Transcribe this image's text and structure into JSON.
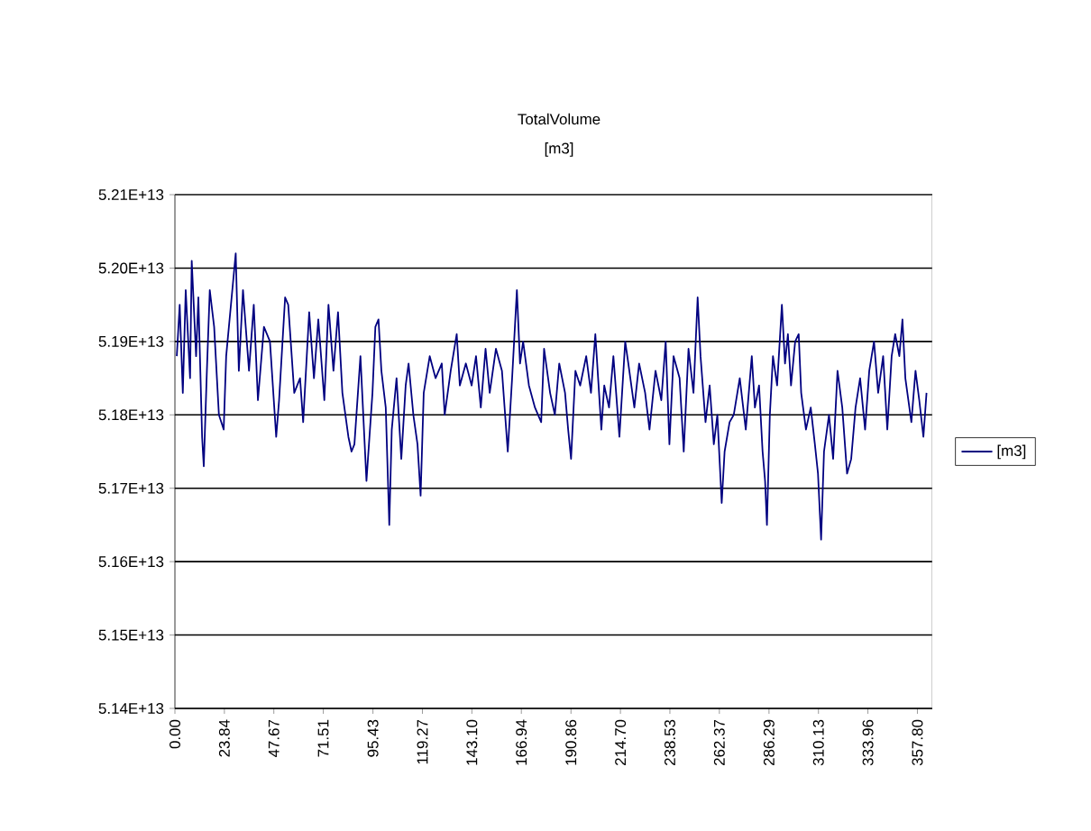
{
  "chart_data": {
    "type": "line",
    "title": "TotalVolume",
    "subtitle": "[m3]",
    "x": [
      0.9,
      2.3,
      3.8,
      5.2,
      7.3,
      8.1,
      10.2,
      11.3,
      13.1,
      13.9,
      15.4,
      16.8,
      18.9,
      21.2,
      23.5,
      24.7,
      27.0,
      29.3,
      30.8,
      32.8,
      35.7,
      38.0,
      40.0,
      42.9,
      45.8,
      48.8,
      50.2,
      53.1,
      54.6,
      57.5,
      60.3,
      61.8,
      64.7,
      67.0,
      69.1,
      72.0,
      74.0,
      76.4,
      78.6,
      80.7,
      83.6,
      85.1,
      86.5,
      89.4,
      92.3,
      95.2,
      96.6,
      98.1,
      99.5,
      101.6,
      103.3,
      104.5,
      106.8,
      109.1,
      111.2,
      112.6,
      114.9,
      116.9,
      118.4,
      119.9,
      122.8,
      125.6,
      128.6,
      130.0,
      132.9,
      135.8,
      137.3,
      140.2,
      143.0,
      145.1,
      147.4,
      149.7,
      151.7,
      154.7,
      157.6,
      160.4,
      162.5,
      164.8,
      166.3,
      167.8,
      170.6,
      173.5,
      176.5,
      177.9,
      180.8,
      183.1,
      185.2,
      188.0,
      189.5,
      190.9,
      193.0,
      195.3,
      198.2,
      200.5,
      202.6,
      205.5,
      206.9,
      209.2,
      211.3,
      214.2,
      217.0,
      218.5,
      221.4,
      223.7,
      226.6,
      228.7,
      231.6,
      234.4,
      236.5,
      238.3,
      240.3,
      243.2,
      245.2,
      247.5,
      249.9,
      251.9,
      253.3,
      255.7,
      257.7,
      259.7,
      261.4,
      263.5,
      264.9,
      267.3,
      269.3,
      272.2,
      275.1,
      278.0,
      279.5,
      281.5,
      283.2,
      284.4,
      285.3,
      286.7,
      288.2,
      290.2,
      292.5,
      294.0,
      295.4,
      296.9,
      298.9,
      300.6,
      301.8,
      304.1,
      306.4,
      308.4,
      309.9,
      311.4,
      312.8,
      315.2,
      317.2,
      319.3,
      321.6,
      323.9,
      325.9,
      328.0,
      330.2,
      332.6,
      334.6,
      336.9,
      338.9,
      341.3,
      343.3,
      345.4,
      347.1,
      349.1,
      350.6,
      352.0,
      354.9,
      356.9,
      358.7,
      360.7,
      362.2
    ],
    "series": [
      {
        "name": "[m3]",
        "color": "#000080",
        "values": [
          51880000000000.0,
          51950000000000.0,
          51830000000000.0,
          51970000000000.0,
          51850000000000.0,
          52010000000000.0,
          51880000000000.0,
          51960000000000.0,
          51770000000000.0,
          51730000000000.0,
          51860000000000.0,
          51970000000000.0,
          51920000000000.0,
          51800000000000.0,
          51780000000000.0,
          51880000000000.0,
          51950000000000.0,
          52020000000000.0,
          51860000000000.0,
          51970000000000.0,
          51860000000000.0,
          51950000000000.0,
          51820000000000.0,
          51920000000000.0,
          51900000000000.0,
          51770000000000.0,
          51820000000000.0,
          51960000000000.0,
          51950000000000.0,
          51830000000000.0,
          51850000000000.0,
          51790000000000.0,
          51940000000000.0,
          51850000000000.0,
          51930000000000.0,
          51820000000000.0,
          51950000000000.0,
          51860000000000.0,
          51940000000000.0,
          51830000000000.0,
          51770000000000.0,
          51750000000000.0,
          51760000000000.0,
          51880000000000.0,
          51710000000000.0,
          51830000000000.0,
          51920000000000.0,
          51930000000000.0,
          51860000000000.0,
          51810000000000.0,
          51650000000000.0,
          51780000000000.0,
          51850000000000.0,
          51740000000000.0,
          51840000000000.0,
          51870000000000.0,
          51800000000000.0,
          51760000000000.0,
          51690000000000.0,
          51830000000000.0,
          51880000000000.0,
          51850000000000.0,
          51870000000000.0,
          51800000000000.0,
          51860000000000.0,
          51910000000000.0,
          51840000000000.0,
          51870000000000.0,
          51840000000000.0,
          51880000000000.0,
          51810000000000.0,
          51890000000000.0,
          51830000000000.0,
          51890000000000.0,
          51860000000000.0,
          51750000000000.0,
          51850000000000.0,
          51970000000000.0,
          51870000000000.0,
          51900000000000.0,
          51840000000000.0,
          51810000000000.0,
          51790000000000.0,
          51890000000000.0,
          51830000000000.0,
          51800000000000.0,
          51870000000000.0,
          51830000000000.0,
          51780000000000.0,
          51740000000000.0,
          51860000000000.0,
          51840000000000.0,
          51880000000000.0,
          51830000000000.0,
          51910000000000.0,
          51780000000000.0,
          51840000000000.0,
          51810000000000.0,
          51880000000000.0,
          51770000000000.0,
          51900000000000.0,
          51870000000000.0,
          51810000000000.0,
          51870000000000.0,
          51830000000000.0,
          51780000000000.0,
          51860000000000.0,
          51820000000000.0,
          51900000000000.0,
          51760000000000.0,
          51880000000000.0,
          51850000000000.0,
          51750000000000.0,
          51890000000000.0,
          51830000000000.0,
          51960000000000.0,
          51880000000000.0,
          51790000000000.0,
          51840000000000.0,
          51760000000000.0,
          51800000000000.0,
          51680000000000.0,
          51750000000000.0,
          51790000000000.0,
          51800000000000.0,
          51850000000000.0,
          51780000000000.0,
          51880000000000.0,
          51810000000000.0,
          51840000000000.0,
          51750000000000.0,
          51710000000000.0,
          51650000000000.0,
          51800000000000.0,
          51880000000000.0,
          51840000000000.0,
          51950000000000.0,
          51870000000000.0,
          51910000000000.0,
          51840000000000.0,
          51900000000000.0,
          51910000000000.0,
          51830000000000.0,
          51780000000000.0,
          51810000000000.0,
          51760000000000.0,
          51720000000000.0,
          51630000000000.0,
          51750000000000.0,
          51800000000000.0,
          51740000000000.0,
          51860000000000.0,
          51810000000000.0,
          51720000000000.0,
          51740000000000.0,
          51810000000000.0,
          51850000000000.0,
          51780000000000.0,
          51860000000000.0,
          51900000000000.0,
          51830000000000.0,
          51880000000000.0,
          51780000000000.0,
          51880000000000.0,
          51910000000000.0,
          51880000000000.0,
          51930000000000.0,
          51850000000000.0,
          51790000000000.0,
          51860000000000.0,
          51820000000000.0,
          51770000000000.0,
          51830000000000.0
        ]
      }
    ],
    "xlim": [
      0,
      365
    ],
    "xticks": [
      {
        "value": 0,
        "label": "0.00"
      },
      {
        "value": 23.84,
        "label": "23.84"
      },
      {
        "value": 47.67,
        "label": "47.67"
      },
      {
        "value": 71.51,
        "label": "71.51"
      },
      {
        "value": 95.43,
        "label": "95.43"
      },
      {
        "value": 119.27,
        "label": "119.27"
      },
      {
        "value": 143.1,
        "label": "143.10"
      },
      {
        "value": 166.94,
        "label": "166.94"
      },
      {
        "value": 190.86,
        "label": "190.86"
      },
      {
        "value": 214.7,
        "label": "214.70"
      },
      {
        "value": 238.53,
        "label": "238.53"
      },
      {
        "value": 262.37,
        "label": "262.37"
      },
      {
        "value": 286.29,
        "label": "286.29"
      },
      {
        "value": 310.13,
        "label": "310.13"
      },
      {
        "value": 333.96,
        "label": "333.96"
      },
      {
        "value": 357.8,
        "label": "357.80"
      }
    ],
    "ylim": [
      51400000000000.0,
      52100000000000.0
    ],
    "yticks": [
      {
        "value": 51400000000000.0,
        "label": "5.14E+13"
      },
      {
        "value": 51500000000000.0,
        "label": "5.15E+13"
      },
      {
        "value": 51600000000000.0,
        "label": "5.16E+13"
      },
      {
        "value": 51700000000000.0,
        "label": "5.17E+13"
      },
      {
        "value": 51800000000000.0,
        "label": "5.18E+13"
      },
      {
        "value": 51900000000000.0,
        "label": "5.19E+13"
      },
      {
        "value": 52000000000000.0,
        "label": "5.20E+13"
      },
      {
        "value": 52100000000000.0,
        "label": "5.21E+13"
      }
    ],
    "grid": "y",
    "legend": "right",
    "marker": "none",
    "line_style": "solid"
  }
}
